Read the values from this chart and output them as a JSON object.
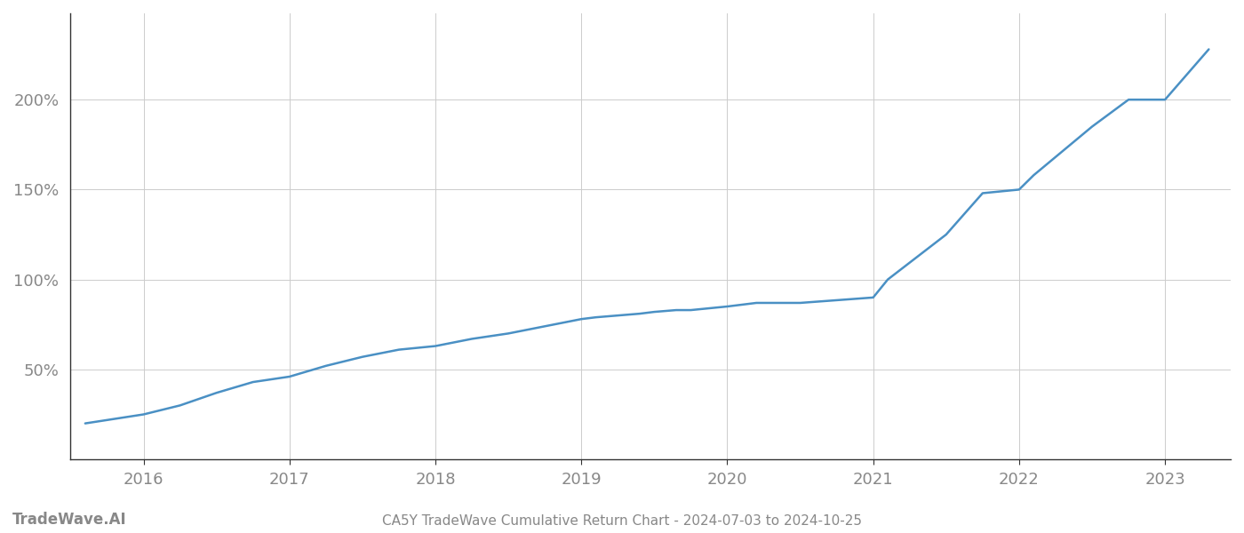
{
  "title": "CA5Y TradeWave Cumulative Return Chart - 2024-07-03 to 2024-10-25",
  "watermark": "TradeWave.AI",
  "line_color": "#4a90c4",
  "background_color": "#ffffff",
  "grid_color": "#cccccc",
  "axis_label_color": "#888888",
  "title_color": "#888888",
  "watermark_color": "#888888",
  "x_years": [
    2016,
    2017,
    2018,
    2019,
    2020,
    2021,
    2022,
    2023
  ],
  "x_data": [
    2015.6,
    2016.0,
    2016.25,
    2016.5,
    2016.75,
    2017.0,
    2017.25,
    2017.5,
    2017.75,
    2018.0,
    2018.25,
    2018.5,
    2018.75,
    2019.0,
    2019.1,
    2019.25,
    2019.4,
    2019.5,
    2019.65,
    2019.75,
    2020.0,
    2020.1,
    2020.2,
    2020.5,
    2021.0,
    2021.1,
    2021.5,
    2021.75,
    2022.0,
    2022.1,
    2022.5,
    2022.75,
    2023.0,
    2023.3
  ],
  "y_data": [
    20,
    25,
    30,
    37,
    43,
    46,
    52,
    57,
    61,
    63,
    67,
    70,
    74,
    78,
    79,
    80,
    81,
    82,
    83,
    83,
    85,
    86,
    87,
    87,
    90,
    100,
    125,
    148,
    150,
    158,
    185,
    200,
    200,
    228
  ],
  "yticks": [
    50,
    100,
    150,
    200
  ],
  "ytick_labels": [
    "50%",
    "100%",
    "150%",
    "200%"
  ],
  "xlim": [
    2015.5,
    2023.45
  ],
  "ylim": [
    0,
    248
  ],
  "line_width": 1.8,
  "title_fontsize": 11,
  "tick_fontsize": 13,
  "watermark_fontsize": 12
}
